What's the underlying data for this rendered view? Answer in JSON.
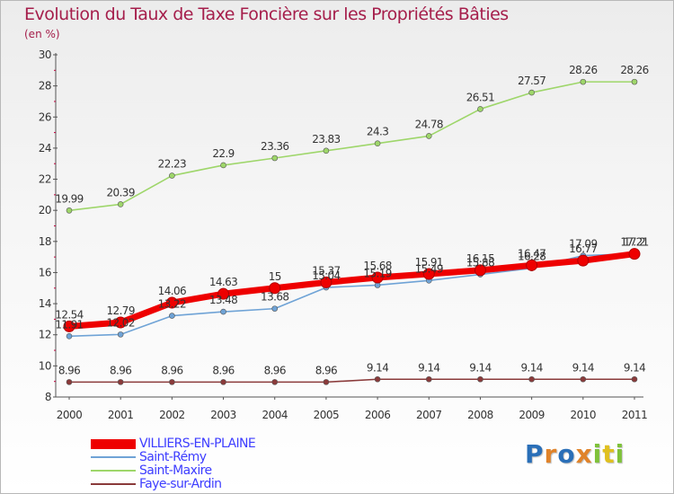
{
  "title": "Evolution du Taux de Taxe Foncière sur les Propriétés Bâties",
  "subtitle": "(en %)",
  "logo": {
    "letters": [
      "P",
      "r",
      "o",
      "x",
      "i",
      "t",
      "i"
    ],
    "colors": [
      "#2a6fb8",
      "#e0832a",
      "#2a6fb8",
      "#e0832a",
      "#7fc23a",
      "#e0c021",
      "#7fc23a"
    ]
  },
  "chart_data": {
    "type": "line",
    "title": "Evolution du Taux de Taxe Foncière sur les Propriétés Bâties",
    "ylabel": "(en %)",
    "xlabel": "",
    "ylim": [
      8,
      30
    ],
    "grid": false,
    "legend": "bottom-left",
    "x": [
      "2000",
      "2001",
      "2002",
      "2003",
      "2004",
      "2005",
      "2006",
      "2007",
      "2008",
      "2009",
      "2010",
      "2011"
    ],
    "yticks": [
      "8",
      "10",
      "12",
      "14",
      "16",
      "18",
      "20",
      "22",
      "24",
      "26",
      "28",
      "30"
    ],
    "series": [
      {
        "name": "VILLIERS-EN-PLAINE",
        "color": "#ee0000",
        "legend_text_color": "#3d3dff",
        "values": [
          12.54,
          12.79,
          14.06,
          14.63,
          15,
          15.37,
          15.68,
          15.91,
          16.15,
          16.47,
          16.77,
          17.2
        ],
        "labels": [
          "12.54",
          "12.79",
          "14.06",
          "14.63",
          "15",
          "15.37",
          "15.68",
          "15.91",
          "16.15",
          "16.47",
          "16.77",
          "17.2"
        ]
      },
      {
        "name": "Saint-Rémy",
        "color": "#6fa3d6",
        "legend_text_color": "#3d3dff",
        "values": [
          11.91,
          12.02,
          13.22,
          13.48,
          13.68,
          15.04,
          15.19,
          15.49,
          15.88,
          16.28,
          17.09,
          17.21
        ],
        "labels": [
          "11.91",
          "12.02",
          "13.22",
          "13.48",
          "13.68",
          "15.04",
          "15.19",
          "15.49",
          "15.88",
          "16.28",
          "17.09",
          "17.21"
        ]
      },
      {
        "name": "Saint-Maxire",
        "color": "#9ed66a",
        "legend_text_color": "#3d3dff",
        "values": [
          19.99,
          20.39,
          22.23,
          22.9,
          23.36,
          23.83,
          24.3,
          24.78,
          26.51,
          27.57,
          28.26,
          28.26
        ],
        "labels": [
          "19.99",
          "20.39",
          "22.23",
          "22.9",
          "23.36",
          "23.83",
          "24.3",
          "24.78",
          "26.51",
          "27.57",
          "28.26",
          "28.26"
        ]
      },
      {
        "name": "Faye-sur-Ardin",
        "color": "#8a3a3a",
        "legend_text_color": "#3d3dff",
        "values": [
          8.96,
          8.96,
          8.96,
          8.96,
          8.96,
          8.96,
          9.14,
          9.14,
          9.14,
          9.14,
          9.14,
          9.14
        ],
        "labels": [
          "8.96",
          "8.96",
          "8.96",
          "8.96",
          "8.96",
          "8.96",
          "9.14",
          "9.14",
          "9.14",
          "9.14",
          "9.14",
          "9.14"
        ]
      }
    ]
  }
}
